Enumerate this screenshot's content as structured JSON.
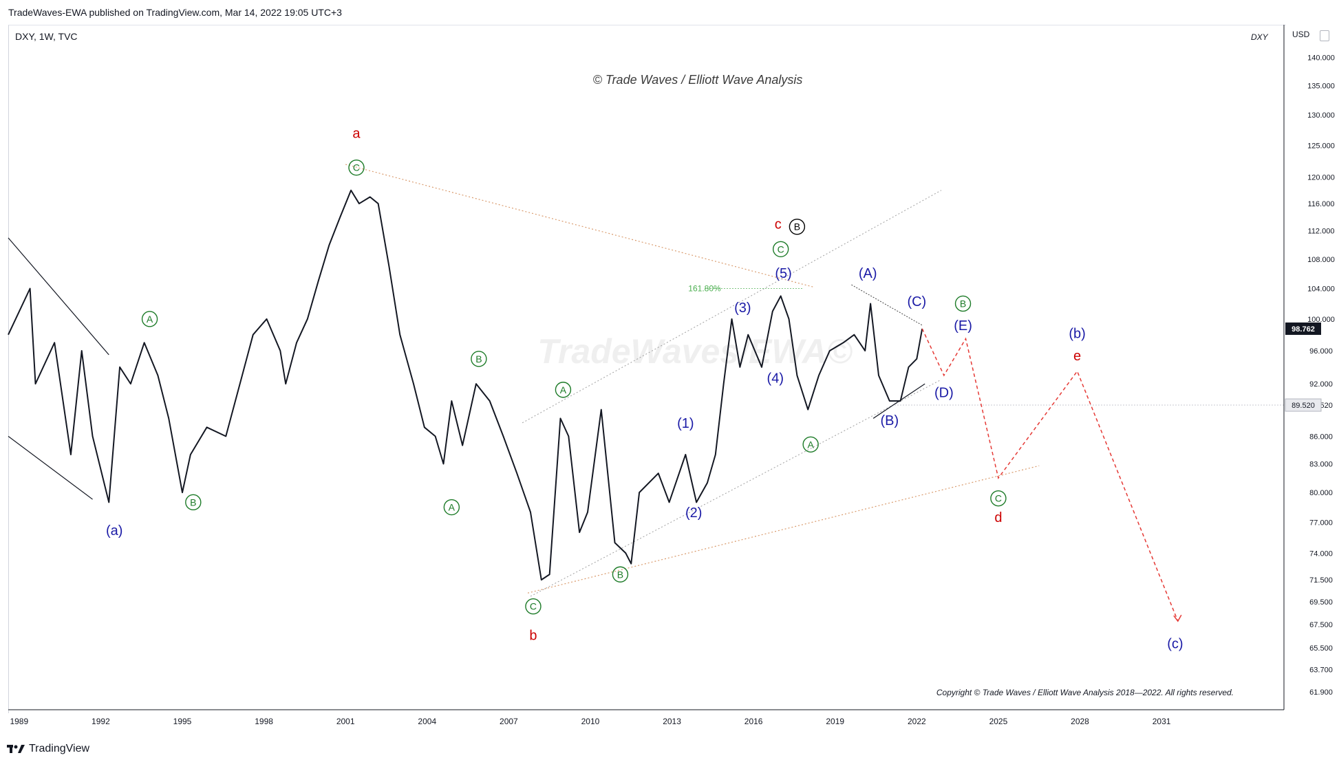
{
  "header": {
    "published_line": "TradeWaves-EWA published on TradingView.com, Mar 14, 2022 19:05 UTC+3",
    "symbol_line": "DXY, 1W, TVC",
    "symbol_right": "DXY",
    "currency": "USD"
  },
  "footer": {
    "brand": "TradingView",
    "logo_icon": "tradingview-logo-icon"
  },
  "chart_data": {
    "type": "line",
    "title": "© Trade Waves / Elliott Wave Analysis",
    "watermark": "TradeWaves/EWA©",
    "copyright": "Copyright © Trade Waves / Elliott Wave Analysis 2018—2022. All rights reserved.",
    "x_axis": {
      "ticks": [
        "1989",
        "1992",
        "1995",
        "1998",
        "2001",
        "2004",
        "2007",
        "2010",
        "2013",
        "2016",
        "2019",
        "2022",
        "2025",
        "2028",
        "2031"
      ],
      "xlim": [
        1988.6,
        2035.5
      ]
    },
    "y_axis": {
      "scale": "log",
      "ticks": [
        "140.000",
        "135.000",
        "130.000",
        "125.000",
        "120.000",
        "116.000",
        "112.000",
        "108.000",
        "104.000",
        "100.000",
        "96.000",
        "92.000",
        "89.520",
        "86.000",
        "83.000",
        "80.000",
        "77.000",
        "74.000",
        "71.500",
        "69.500",
        "67.500",
        "65.500",
        "63.700",
        "61.900"
      ],
      "ylim": [
        60.5,
        146
      ]
    },
    "last_price": "98.762",
    "marked_price": "89.520",
    "fib_label": "161.80%",
    "price_series": {
      "name": "DXY",
      "x": [
        1988.6,
        1989.4,
        1989.6,
        1990.3,
        1990.9,
        1991.3,
        1991.7,
        1992.3,
        1992.7,
        1993.1,
        1993.6,
        1994.1,
        1994.5,
        1995.0,
        1995.3,
        1995.9,
        1996.6,
        1997.2,
        1997.6,
        1998.1,
        1998.6,
        1998.8,
        1999.2,
        1999.6,
        2000.0,
        2000.4,
        2000.8,
        2001.2,
        2001.5,
        2001.9,
        2002.2,
        2002.6,
        2003.0,
        2003.5,
        2003.9,
        2004.3,
        2004.6,
        2004.9,
        2005.3,
        2005.8,
        2006.3,
        2006.8,
        2007.3,
        2007.8,
        2008.2,
        2008.5,
        2008.9,
        2009.2,
        2009.6,
        2009.9,
        2010.4,
        2010.9,
        2011.3,
        2011.5,
        2011.8,
        2012.5,
        2012.9,
        2013.5,
        2013.9,
        2014.3,
        2014.6,
        2014.9,
        2015.2,
        2015.5,
        2015.8,
        2016.3,
        2016.7,
        2017.0,
        2017.3,
        2017.6,
        2018.0,
        2018.4,
        2018.8,
        2019.3,
        2019.7,
        2020.1,
        2020.3,
        2020.6,
        2021.0,
        2021.4,
        2021.7,
        2022.0,
        2022.2
      ],
      "y": [
        98,
        104,
        92,
        97,
        84,
        96,
        86,
        79,
        94,
        92,
        97,
        93,
        88,
        80,
        84,
        87,
        86,
        93,
        98,
        100,
        96,
        92,
        97,
        100,
        105,
        110,
        114,
        118,
        116,
        117,
        116,
        107,
        98,
        92,
        87,
        86,
        83,
        90,
        85,
        92,
        90,
        86,
        82,
        78,
        71.5,
        72,
        88,
        86,
        76,
        78,
        89,
        75,
        74,
        73,
        80,
        82,
        79,
        84,
        79,
        81,
        84,
        92,
        100,
        94,
        98,
        94,
        101,
        103,
        100,
        93,
        89,
        93,
        96,
        97,
        98,
        96,
        102,
        93,
        90,
        90,
        94,
        95,
        98.76
      ]
    },
    "projection": {
      "name": "projected path",
      "x": [
        2022.2,
        2023.0,
        2023.8,
        2025.0,
        2027.9,
        2031.6
      ],
      "y": [
        98.76,
        93.0,
        97.5,
        81.5,
        93.5,
        67.8
      ]
    },
    "wave_labels": [
      {
        "text": "(a)",
        "x": 1992.5,
        "y": 76.2,
        "color": "#1a1aa6",
        "kind": "plain"
      },
      {
        "text": "A",
        "x": 1993.8,
        "y": 100.0,
        "color": "#1b7a26",
        "kind": "circle"
      },
      {
        "text": "B",
        "x": 1995.4,
        "y": 79.0,
        "color": "#1b7a26",
        "kind": "circle"
      },
      {
        "text": "a",
        "x": 2001.4,
        "y": 127.0,
        "color": "#cc0000",
        "kind": "plain"
      },
      {
        "text": "C",
        "x": 2001.4,
        "y": 121.5,
        "color": "#1b7a26",
        "kind": "circle"
      },
      {
        "text": "A",
        "x": 2004.9,
        "y": 78.5,
        "color": "#1b7a26",
        "kind": "circle"
      },
      {
        "text": "B",
        "x": 2005.9,
        "y": 95.0,
        "color": "#1b7a26",
        "kind": "circle"
      },
      {
        "text": "C",
        "x": 2007.9,
        "y": 69.1,
        "color": "#1b7a26",
        "kind": "circle"
      },
      {
        "text": "b",
        "x": 2007.9,
        "y": 66.6,
        "color": "#cc0000",
        "kind": "plain"
      },
      {
        "text": "A",
        "x": 2009.0,
        "y": 91.3,
        "color": "#1b7a26",
        "kind": "circle"
      },
      {
        "text": "B",
        "x": 2011.1,
        "y": 72.0,
        "color": "#1b7a26",
        "kind": "circle"
      },
      {
        "text": "(1)",
        "x": 2013.5,
        "y": 87.5,
        "color": "#1a1aa6",
        "kind": "plain"
      },
      {
        "text": "(2)",
        "x": 2013.8,
        "y": 78.0,
        "color": "#1a1aa6",
        "kind": "plain"
      },
      {
        "text": "(3)",
        "x": 2015.6,
        "y": 101.5,
        "color": "#1a1aa6",
        "kind": "plain"
      },
      {
        "text": "161.80%",
        "x": 2014.2,
        "y": 104.0,
        "color": "#4caf50",
        "kind": "small"
      },
      {
        "text": "(4)",
        "x": 2016.8,
        "y": 92.7,
        "color": "#1a1aa6",
        "kind": "plain"
      },
      {
        "text": "(5)",
        "x": 2017.1,
        "y": 106.1,
        "color": "#1a1aa6",
        "kind": "plain"
      },
      {
        "text": "C",
        "x": 2017.0,
        "y": 109.4,
        "color": "#1b7a26",
        "kind": "circle"
      },
      {
        "text": "c",
        "x": 2016.9,
        "y": 113.0,
        "color": "#cc0000",
        "kind": "plain"
      },
      {
        "text": "B",
        "x": 2017.6,
        "y": 112.6,
        "color": "#000000",
        "kind": "circle"
      },
      {
        "text": "A",
        "x": 2018.1,
        "y": 85.1,
        "color": "#1b7a26",
        "kind": "circle"
      },
      {
        "text": "(A)",
        "x": 2020.2,
        "y": 106.1,
        "color": "#1a1aa6",
        "kind": "plain"
      },
      {
        "text": "(B)",
        "x": 2021.0,
        "y": 87.8,
        "color": "#1a1aa6",
        "kind": "plain"
      },
      {
        "text": "(C)",
        "x": 2022.0,
        "y": 102.3,
        "color": "#1a1aa6",
        "kind": "plain"
      },
      {
        "text": "(D)",
        "x": 2023.0,
        "y": 91.0,
        "color": "#1a1aa6",
        "kind": "plain"
      },
      {
        "text": "B",
        "x": 2023.7,
        "y": 102.0,
        "color": "#1b7a26",
        "kind": "circle"
      },
      {
        "text": "(E)",
        "x": 2023.7,
        "y": 99.2,
        "color": "#1a1aa6",
        "kind": "plain"
      },
      {
        "text": "C",
        "x": 2025.0,
        "y": 79.4,
        "color": "#1b7a26",
        "kind": "circle"
      },
      {
        "text": "d",
        "x": 2025.0,
        "y": 77.5,
        "color": "#cc0000",
        "kind": "plain"
      },
      {
        "text": "(b)",
        "x": 2027.9,
        "y": 98.2,
        "color": "#1a1aa6",
        "kind": "plain"
      },
      {
        "text": "e",
        "x": 2027.9,
        "y": 95.4,
        "color": "#cc0000",
        "kind": "plain"
      },
      {
        "text": "(c)",
        "x": 2031.5,
        "y": 65.9,
        "color": "#1a1aa6",
        "kind": "plain"
      }
    ],
    "trendlines": [
      {
        "x": [
          2001.0,
          2018.2
        ],
        "y": [
          122.0,
          104.2
        ],
        "style": "orange-dotted"
      },
      {
        "x": [
          2007.7,
          2026.5
        ],
        "y": [
          70.3,
          82.8
        ],
        "style": "orange-dotted"
      },
      {
        "x": [
          2007.5,
          2022.9
        ],
        "y": [
          87.5,
          118.0
        ],
        "style": "gray-dotted"
      },
      {
        "x": [
          2007.8,
          2022.9
        ],
        "y": [
          70.0,
          92.5
        ],
        "style": "gray-dotted"
      },
      {
        "x": [
          1988.6,
          1992.3
        ],
        "y": [
          111.0,
          95.5
        ],
        "style": "black"
      },
      {
        "x": [
          1988.6,
          1991.7
        ],
        "y": [
          86.0,
          79.3
        ],
        "style": "black"
      },
      {
        "x": [
          2014.2,
          2017.8
        ],
        "y": [
          104.0,
          104.0
        ],
        "style": "green-dotted"
      },
      {
        "x": [
          2019.6,
          2022.2
        ],
        "y": [
          104.5,
          99.2
        ],
        "style": "black-dotted"
      },
      {
        "x": [
          2020.4,
          2022.3
        ],
        "y": [
          88.0,
          92.0
        ],
        "style": "black"
      }
    ]
  }
}
